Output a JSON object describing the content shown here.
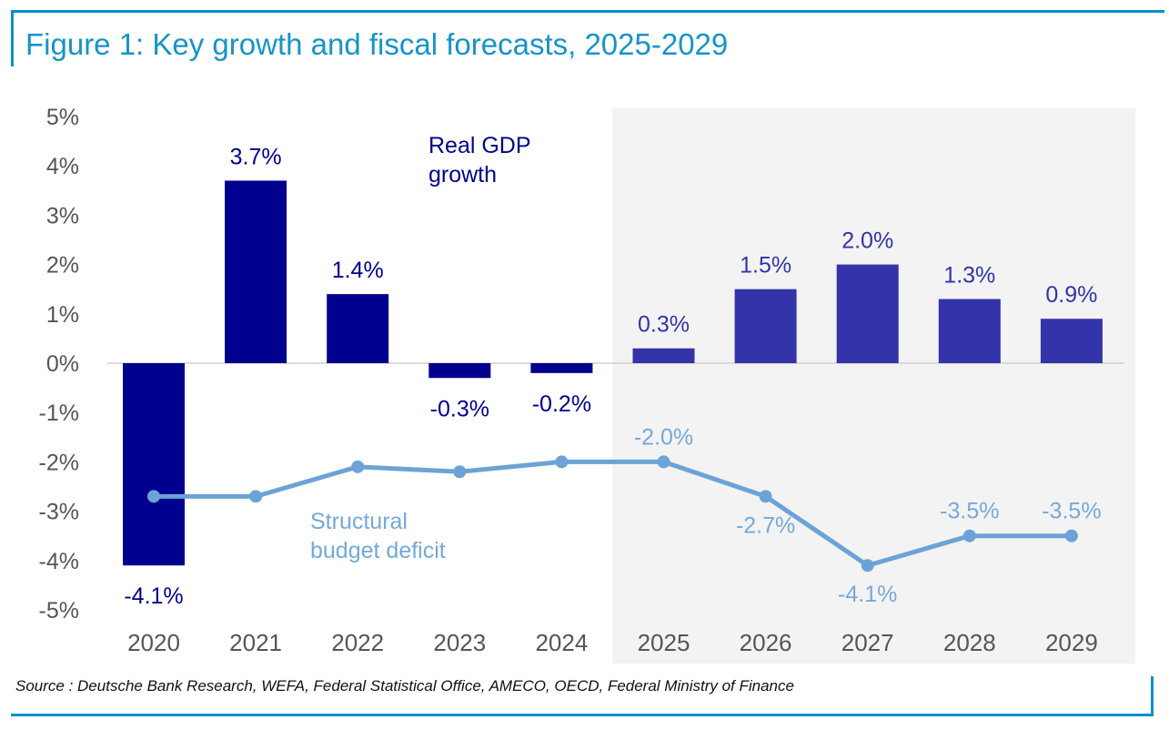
{
  "title": "Figure 1: Key growth and fiscal forecasts, 2025-2029",
  "source": "Source : Deutsche Bank Research, WEFA, Federal Statistical Office, AMECO, OECD, Federal Ministry of Finance",
  "colors": {
    "rule": "#0b8fca",
    "title": "#1793c9",
    "gdp_actual": "#00008f",
    "gdp_forecast": "#3333aa",
    "deficit_line": "#6ba3d6",
    "deficit_label": "#74a9db",
    "forecast_shade": "#f3f3f3",
    "axis_text": "#555555"
  },
  "chart_data": {
    "type": "bar",
    "categories": [
      "2020",
      "2021",
      "2022",
      "2023",
      "2024",
      "2025",
      "2026",
      "2027",
      "2028",
      "2029"
    ],
    "ylim": [
      -5,
      5
    ],
    "yticks": [
      "-5%",
      "-4%",
      "-3%",
      "-2%",
      "-1%",
      "0%",
      "1%",
      "2%",
      "3%",
      "4%",
      "5%"
    ],
    "forecast_start": "2025",
    "series": [
      {
        "name": "Real GDP growth",
        "kind": "bar",
        "values": [
          -4.1,
          3.7,
          1.4,
          -0.3,
          -0.2,
          0.3,
          1.5,
          2.0,
          1.3,
          0.9
        ],
        "labels": [
          "-4.1%",
          "3.7%",
          "1.4%",
          "-0.3%",
          "-0.2%",
          "0.3%",
          "1.5%",
          "2.0%",
          "1.3%",
          "0.9%"
        ],
        "annotation": [
          "Real GDP",
          "growth"
        ]
      },
      {
        "name": "Structural budget deficit",
        "kind": "line",
        "values": [
          -2.7,
          -2.7,
          -2.1,
          -2.2,
          -2.0,
          -2.0,
          -2.7,
          -4.1,
          -3.5,
          -3.5
        ],
        "labels": [
          "",
          "",
          "",
          "",
          "",
          "-2.0%",
          "-2.7%",
          "-4.1%",
          "-3.5%",
          "-3.5%"
        ],
        "annotation": [
          "Structural",
          "budget deficit"
        ]
      }
    ]
  }
}
